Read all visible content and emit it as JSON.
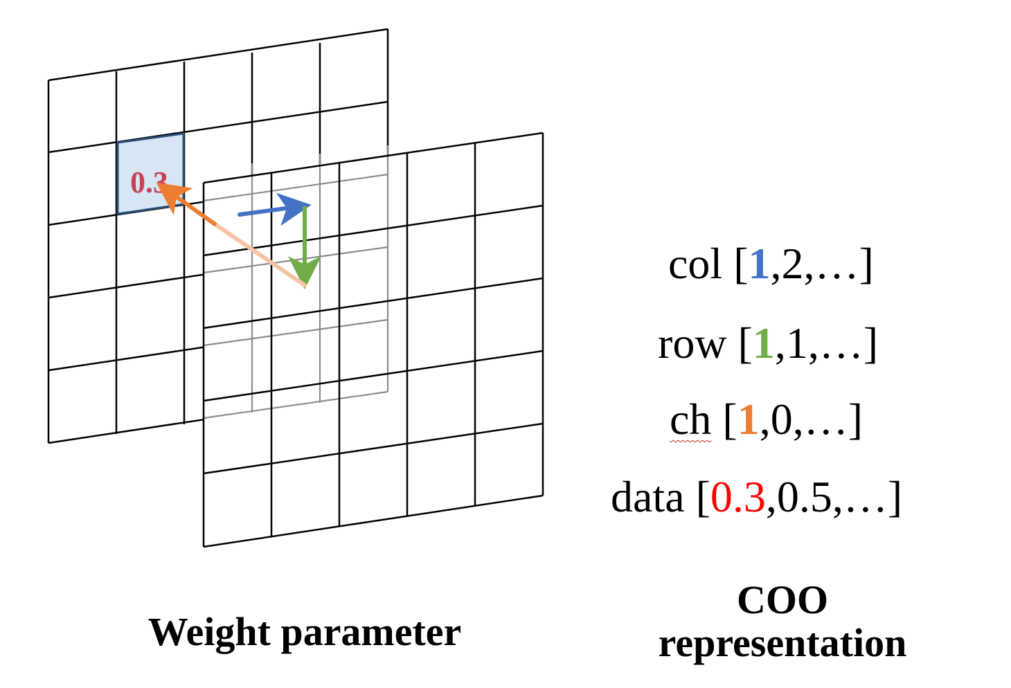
{
  "cell_value": {
    "text": "0.3",
    "color": "#c94057",
    "cell_fill": "#d6e6f4",
    "cell_border": "#2c4f78"
  },
  "arrows": {
    "col_step": {
      "color": "#4472c4"
    },
    "row_step": {
      "color": "#70ad47"
    },
    "channel_step": {
      "color": "#ed7d31",
      "tail_color": "#f6c4a4"
    }
  },
  "coo": {
    "col": {
      "label": "col ",
      "open": "[",
      "highlight": "1",
      "rest": ",2,…]",
      "highlight_color": "#4472c4"
    },
    "row": {
      "label": "row ",
      "open": "[",
      "highlight": "1",
      "rest": ",1,…]",
      "highlight_color": "#70ad47"
    },
    "ch": {
      "label": "ch",
      "space": " ",
      "open": "[",
      "highlight": "1",
      "rest": ",0,…]",
      "highlight_color": "#ed7d31"
    },
    "data": {
      "label": "data ",
      "open": "[",
      "highlight": "0.3",
      "rest": ",0.5,…]",
      "highlight_color": "#ff0000"
    }
  },
  "captions": {
    "weight": "Weight parameter",
    "coo_line1": "COO",
    "coo_line2": "representation"
  }
}
